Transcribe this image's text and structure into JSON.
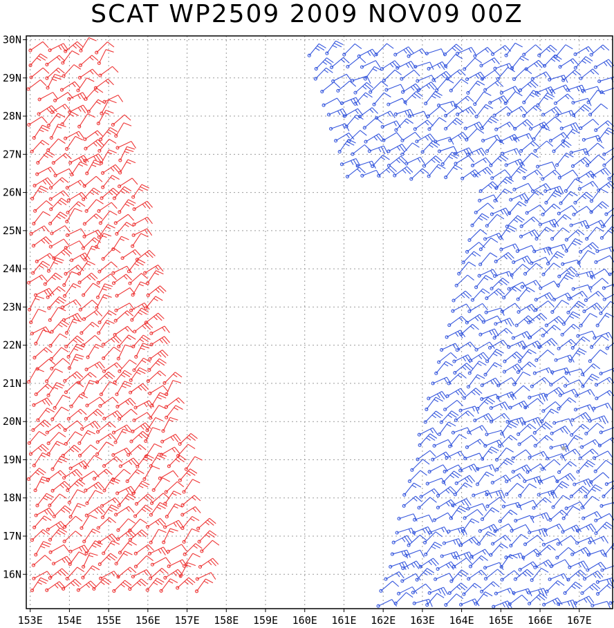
{
  "title": "SCAT WP2509 2009 NOV09 00Z",
  "lon_range": [
    152.9,
    167.85
  ],
  "lat_range": [
    15.1,
    30.1
  ],
  "x_ticks": [
    "153E",
    "154E",
    "155E",
    "156E",
    "157E",
    "158E",
    "159E",
    "160E",
    "161E",
    "162E",
    "163E",
    "164E",
    "165E",
    "166E",
    "167E"
  ],
  "x_tick_values": [
    153,
    154,
    155,
    156,
    157,
    158,
    159,
    160,
    161,
    162,
    163,
    164,
    165,
    166,
    167
  ],
  "y_ticks": [
    "30N",
    "29N",
    "28N",
    "27N",
    "26N",
    "25N",
    "24N",
    "23N",
    "22N",
    "21N",
    "20N",
    "19N",
    "18N",
    "17N",
    "16N"
  ],
  "y_tick_values": [
    30,
    29,
    28,
    27,
    26,
    25,
    24,
    23,
    22,
    21,
    20,
    19,
    18,
    17,
    16
  ],
  "colors": {
    "frame": "#000000",
    "grid": "#999999",
    "ascending_pass": "#3355dd",
    "descending_pass": "#ee3333",
    "flagged": "#aaaaaa"
  },
  "wind_swaths": [
    {
      "name": "western-swath",
      "color_key": "descending_pass",
      "lon_min": 153.0,
      "lon_max": 157.8,
      "lat_min": 15.6,
      "lat_max": 29.7,
      "wind_dir_deg": 45,
      "speed_kt": 20
    },
    {
      "name": "eastern-swath",
      "color_key": "ascending_pass",
      "lon_min": 160.1,
      "lon_max": 167.8,
      "lat_min": 15.2,
      "lat_max": 29.8,
      "wind_dir_deg": 55,
      "speed_kt": 20
    }
  ],
  "flagged_point": {
    "lon": 166.6,
    "lat": 19.3
  }
}
